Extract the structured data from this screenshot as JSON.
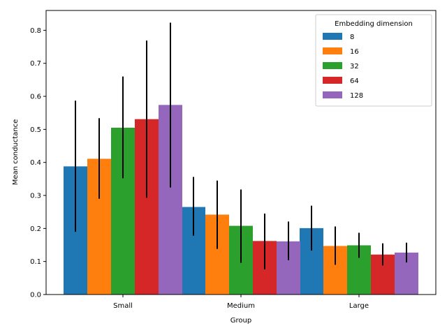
{
  "chart_data": {
    "type": "bar",
    "title": "",
    "xlabel": "Group",
    "ylabel": "Mean conductance",
    "categories": [
      "Small",
      "Medium",
      "Large"
    ],
    "ylim": [
      0,
      0.86
    ],
    "yticks": [
      0.0,
      0.1,
      0.2,
      0.3,
      0.4,
      0.5,
      0.6,
      0.7,
      0.8
    ],
    "ytick_labels": [
      "0.0",
      "0.1",
      "0.2",
      "0.3",
      "0.4",
      "0.5",
      "0.6",
      "0.7",
      "0.8"
    ],
    "grid": false,
    "legend": {
      "title": "Embedding dimension",
      "placement": "top-right"
    },
    "series": [
      {
        "name": "8",
        "color": "#1f77b4",
        "values": [
          0.388,
          0.265,
          0.201
        ],
        "err_low": [
          0.19,
          0.178,
          0.133
        ],
        "err_high": [
          0.587,
          0.356,
          0.269
        ]
      },
      {
        "name": "16",
        "color": "#ff7f0e",
        "values": [
          0.411,
          0.242,
          0.147
        ],
        "err_low": [
          0.29,
          0.138,
          0.09
        ],
        "err_high": [
          0.534,
          0.345,
          0.206
        ]
      },
      {
        "name": "32",
        "color": "#2ca02c",
        "values": [
          0.505,
          0.208,
          0.149
        ],
        "err_low": [
          0.352,
          0.096,
          0.111
        ],
        "err_high": [
          0.66,
          0.318,
          0.187
        ]
      },
      {
        "name": "64",
        "color": "#d62728",
        "values": [
          0.531,
          0.162,
          0.121
        ],
        "err_low": [
          0.293,
          0.076,
          0.088
        ],
        "err_high": [
          0.769,
          0.245,
          0.155
        ]
      },
      {
        "name": "128",
        "color": "#9467bd",
        "values": [
          0.574,
          0.161,
          0.127
        ],
        "err_low": [
          0.324,
          0.104,
          0.097
        ],
        "err_high": [
          0.823,
          0.221,
          0.157
        ]
      }
    ]
  }
}
